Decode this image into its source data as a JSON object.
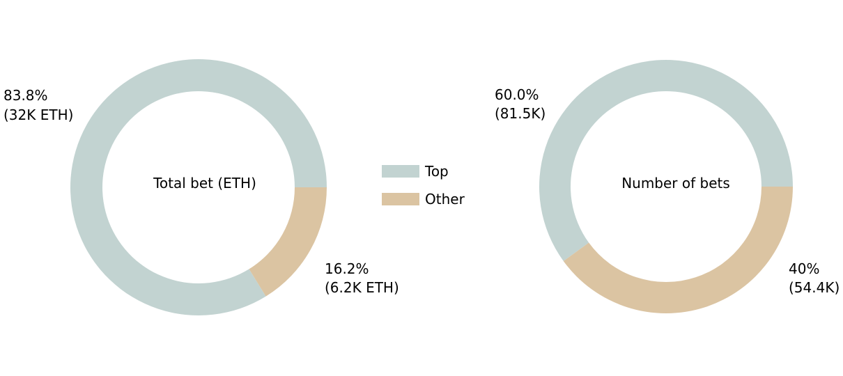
{
  "colors": {
    "top": "#c2d3d1",
    "other": "#dbc4a2"
  },
  "legend": {
    "placement": "center",
    "items": [
      {
        "label": "Top",
        "color": "#c2d3d1"
      },
      {
        "label": "Other",
        "color": "#dbc4a2"
      }
    ]
  },
  "chart_data": [
    {
      "type": "pie",
      "style": "donut",
      "center_label": "Total bet (ETH)",
      "slices": [
        {
          "series": "Top",
          "percent": 83.8,
          "value": "32K ETH",
          "label_pct": "83.8%",
          "label_val": "(32K ETH)",
          "color": "#c2d3d1"
        },
        {
          "series": "Other",
          "percent": 16.2,
          "value": "6.2K ETH",
          "label_pct": "16.2%",
          "label_val": "(6.2K ETH)",
          "color": "#dbc4a2"
        }
      ]
    },
    {
      "type": "pie",
      "style": "donut",
      "center_label": "Number of bets",
      "slices": [
        {
          "series": "Top",
          "percent": 60.0,
          "value": "81.5K",
          "label_pct": "60.0%",
          "label_val": "(81.5K)",
          "color": "#c2d3d1"
        },
        {
          "series": "Other",
          "percent": 40,
          "value": "54.4K",
          "label_pct": "40%",
          "label_val": "(54.4K)",
          "color": "#dbc4a2"
        }
      ]
    }
  ]
}
